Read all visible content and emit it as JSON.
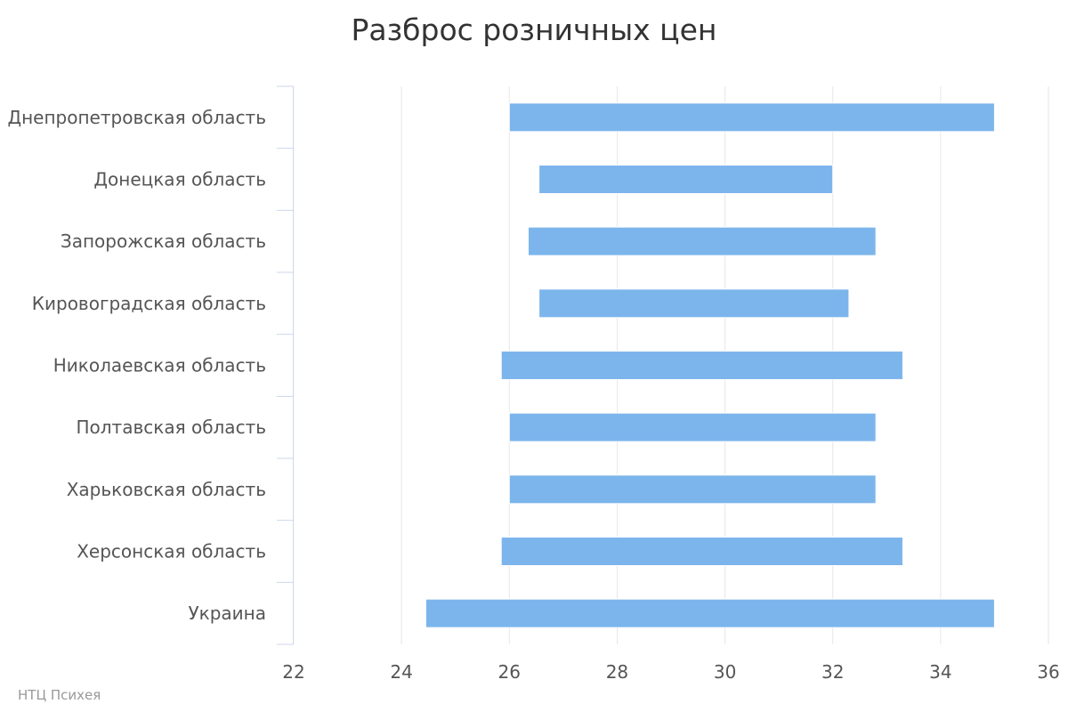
{
  "chart_data": {
    "type": "bar",
    "orientation": "horizontal",
    "title": "Разброс розничных цен",
    "xlabel": "",
    "ylabel": "",
    "xlim": [
      22,
      36
    ],
    "x_ticks": [
      "22",
      "24",
      "26",
      "28",
      "30",
      "32",
      "34",
      "36"
    ],
    "grid": true,
    "bar_color": "#7cb5ec",
    "categories": [
      "Днепропетровская область",
      "Донецкая область",
      "Запорожская область",
      "Кировоградская область",
      "Николаевская область",
      "Полтавская область",
      "Харьковская область",
      "Херсонская область",
      "Украина"
    ],
    "ranges": [
      {
        "low": 26.0,
        "high": 35.0
      },
      {
        "low": 26.55,
        "high": 32.0
      },
      {
        "low": 26.35,
        "high": 32.8
      },
      {
        "low": 26.55,
        "high": 32.3
      },
      {
        "low": 25.85,
        "high": 33.3
      },
      {
        "low": 26.0,
        "high": 32.8
      },
      {
        "low": 26.0,
        "high": 32.8
      },
      {
        "low": 25.85,
        "high": 33.3
      },
      {
        "low": 24.45,
        "high": 35.0
      }
    ]
  },
  "credits": "НТЦ Психея"
}
